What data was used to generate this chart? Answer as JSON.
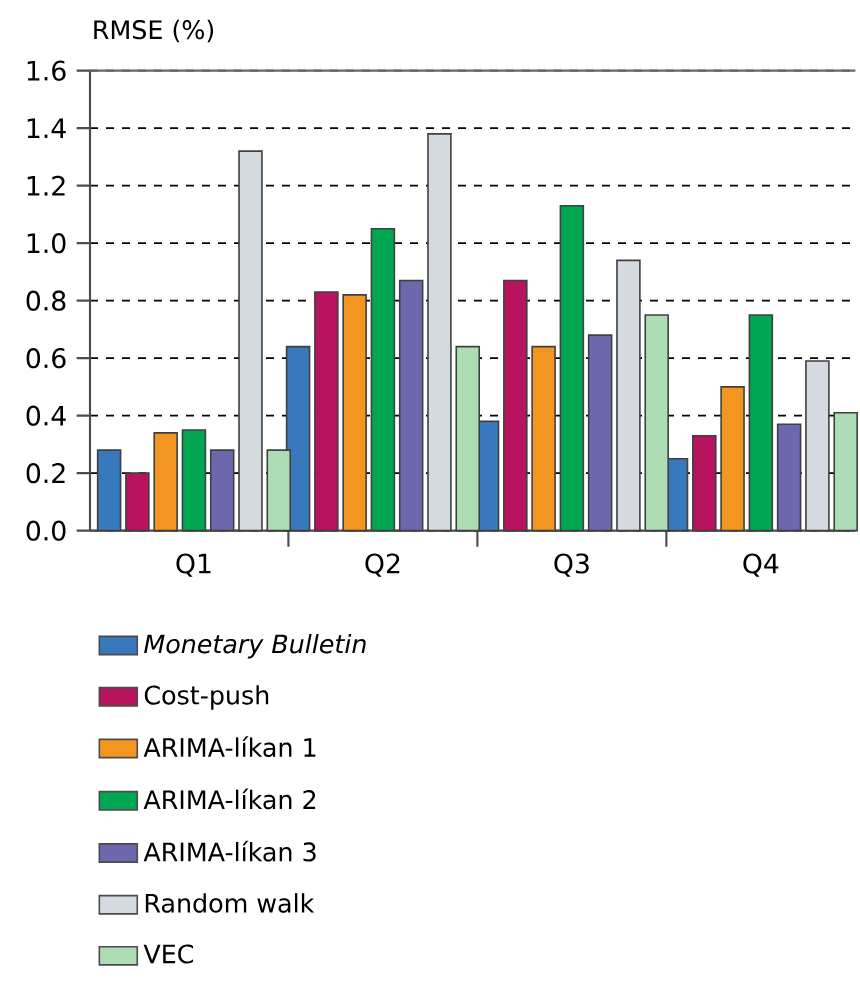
{
  "chart_data": {
    "type": "bar",
    "ylabel": "RMSE (%)",
    "categories": [
      "Q1",
      "Q2",
      "Q3",
      "Q4"
    ],
    "ylim": [
      0,
      1.6
    ],
    "yticks": [
      {
        "value": 0,
        "label": "0.0"
      },
      0.2,
      0.4,
      0.6,
      0.8,
      {
        "value": 1,
        "label": "1.0"
      },
      1.2,
      1.4,
      1.6
    ],
    "grid": "y",
    "legend": "bottom",
    "series": [
      {
        "name": "*Monetary Bulletin*",
        "color": "#3878bd",
        "values": [
          0.28,
          0.64,
          0.38,
          0.25
        ]
      },
      {
        "name": "Cost-push",
        "color": "#b8135e",
        "values": [
          0.2,
          0.83,
          0.87,
          0.33
        ]
      },
      {
        "name": "ARIMA-líkan 1",
        "color": "#f39621",
        "values": [
          0.34,
          0.82,
          0.64,
          0.5
        ]
      },
      {
        "name": "ARIMA-líkan 2",
        "color": "#00a651",
        "values": [
          0.35,
          1.05,
          1.13,
          0.75
        ]
      },
      {
        "name": "ARIMA-líkan 3",
        "color": "#6d67ae",
        "values": [
          0.28,
          0.87,
          0.68,
          0.37
        ]
      },
      {
        "name": "Random walk",
        "color": "#d5dae1",
        "values": [
          1.32,
          1.38,
          0.94,
          0.59
        ]
      },
      {
        "name": "VEC",
        "color": "#aedcb5",
        "values": [
          0.28,
          0.64,
          0.75,
          0.41
        ]
      }
    ]
  }
}
